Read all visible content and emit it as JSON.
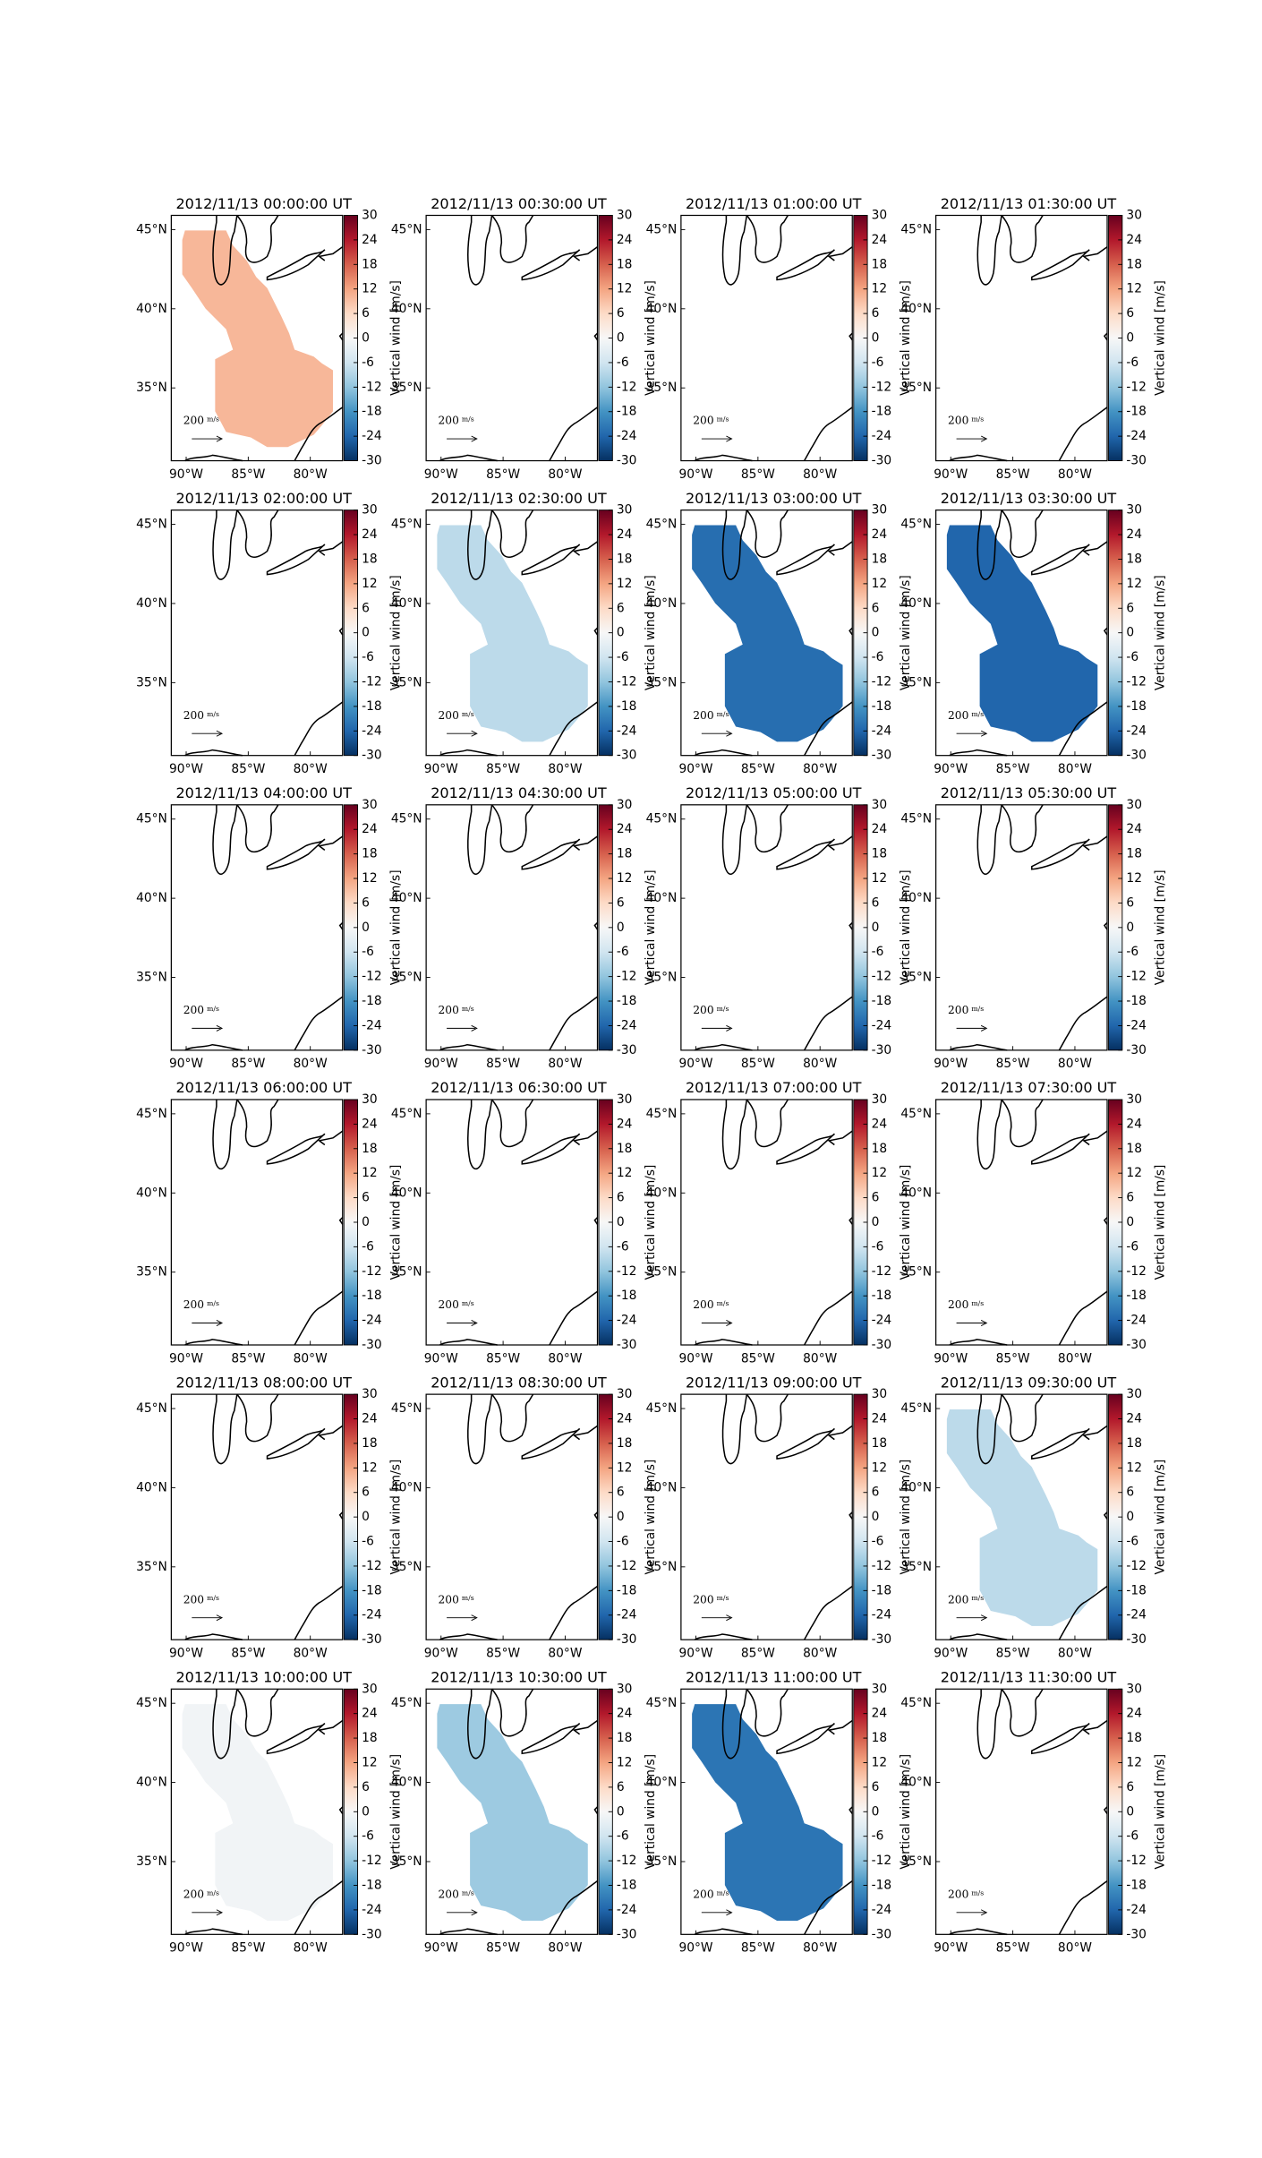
{
  "chart_data": [
    {
      "type": "map",
      "title": "2012/11/13 00:00:00 UT",
      "value": 10
    },
    {
      "type": "map",
      "title": "2012/11/13 00:30:00 UT",
      "value": null
    },
    {
      "type": "map",
      "title": "2012/11/13 01:00:00 UT",
      "value": null
    },
    {
      "type": "map",
      "title": "2012/11/13 01:30:00 UT",
      "value": null
    },
    {
      "type": "map",
      "title": "2012/11/13 02:00:00 UT",
      "value": null
    },
    {
      "type": "map",
      "title": "2012/11/13 02:30:00 UT",
      "value": -8
    },
    {
      "type": "map",
      "title": "2012/11/13 03:00:00 UT",
      "value": -23
    },
    {
      "type": "map",
      "title": "2012/11/13 03:30:00 UT",
      "value": -24
    },
    {
      "type": "map",
      "title": "2012/11/13 04:00:00 UT",
      "value": null
    },
    {
      "type": "map",
      "title": "2012/11/13 04:30:00 UT",
      "value": null
    },
    {
      "type": "map",
      "title": "2012/11/13 05:00:00 UT",
      "value": null
    },
    {
      "type": "map",
      "title": "2012/11/13 05:30:00 UT",
      "value": null
    },
    {
      "type": "map",
      "title": "2012/11/13 06:00:00 UT",
      "value": null
    },
    {
      "type": "map",
      "title": "2012/11/13 06:30:00 UT",
      "value": null
    },
    {
      "type": "map",
      "title": "2012/11/13 07:00:00 UT",
      "value": null
    },
    {
      "type": "map",
      "title": "2012/11/13 07:30:00 UT",
      "value": null
    },
    {
      "type": "map",
      "title": "2012/11/13 08:00:00 UT",
      "value": null
    },
    {
      "type": "map",
      "title": "2012/11/13 08:30:00 UT",
      "value": null
    },
    {
      "type": "map",
      "title": "2012/11/13 09:00:00 UT",
      "value": null
    },
    {
      "type": "map",
      "title": "2012/11/13 09:30:00 UT",
      "value": -8
    },
    {
      "type": "map",
      "title": "2012/11/13 10:00:00 UT",
      "value": -1
    },
    {
      "type": "map",
      "title": "2012/11/13 10:30:00 UT",
      "value": -11
    },
    {
      "type": "map",
      "title": "2012/11/13 11:00:00 UT",
      "value": -22
    },
    {
      "type": "map",
      "title": "2012/11/13 11:30:00 UT",
      "value": null
    }
  ],
  "axes": {
    "xlim": [
      -91.2,
      -77.4
    ],
    "ylim": [
      30.4,
      45.9
    ],
    "xticks": [
      {
        "value": -90,
        "label": "90°W"
      },
      {
        "value": -85,
        "label": "85°W"
      },
      {
        "value": -80,
        "label": "80°W"
      }
    ],
    "yticks": [
      {
        "value": 45,
        "label": "45°N"
      },
      {
        "value": 40,
        "label": "40°N"
      },
      {
        "value": 35,
        "label": "35°N"
      }
    ]
  },
  "colorbar": {
    "label": "Vertical wind [m/s]",
    "lim": [
      -30,
      30
    ],
    "ticks": [
      -30,
      -24,
      -18,
      -12,
      -6,
      0,
      6,
      12,
      18,
      24,
      30
    ],
    "colors": [
      "#053061",
      "#2166ac",
      "#4393c3",
      "#92c5de",
      "#d1e5f0",
      "#f7f7f7",
      "#fddbc7",
      "#f4a582",
      "#d6604d",
      "#b2182b",
      "#67001f"
    ]
  },
  "quiver_key": {
    "value": 200,
    "unit": "m/s"
  }
}
